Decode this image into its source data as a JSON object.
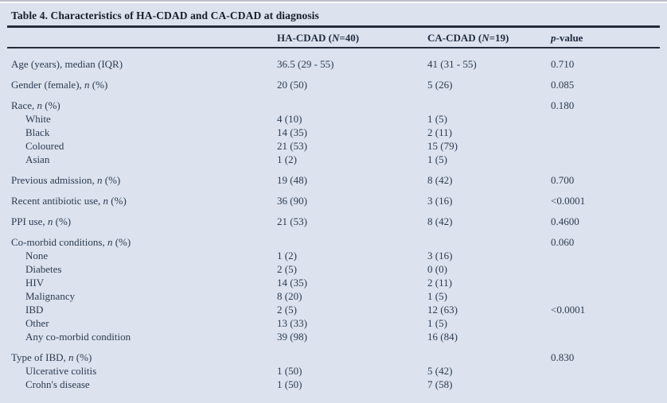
{
  "table": {
    "title": "Table 4. Characteristics of HA-CDAD and CA-CDAD at diagnosis",
    "columns": {
      "label": "",
      "ha": "HA-CDAD (N=40)",
      "ca": "CA-CDAD (N=19)",
      "p": "p-value"
    },
    "rows": [
      {
        "type": "main",
        "label": "Age (years), median (IQR)",
        "ha": "36.5 (29 - 55)",
        "ca": "41 (31 - 55)",
        "p": "0.710"
      },
      {
        "type": "main",
        "label": "Gender (female), n (%)",
        "ha": "20 (50)",
        "ca": "5 (26)",
        "p": "0.085"
      },
      {
        "type": "main",
        "label": "Race, n (%)",
        "ha": "",
        "ca": "",
        "p": "0.180"
      },
      {
        "type": "sub",
        "label": "White",
        "ha": "4 (10)",
        "ca": "1 (5)",
        "p": ""
      },
      {
        "type": "sub",
        "label": "Black",
        "ha": "14 (35)",
        "ca": "2 (11)",
        "p": ""
      },
      {
        "type": "sub",
        "label": "Coloured",
        "ha": "21 (53)",
        "ca": "15 (79)",
        "p": ""
      },
      {
        "type": "sub",
        "label": "Asian",
        "ha": "1 (2)",
        "ca": "1 (5)",
        "p": ""
      },
      {
        "type": "main",
        "label": "Previous admission, n (%)",
        "ha": "19 (48)",
        "ca": "8 (42)",
        "p": "0.700"
      },
      {
        "type": "main",
        "label": "Recent antibiotic use, n (%)",
        "ha": "36 (90)",
        "ca": "3 (16)",
        "p": "<0.0001"
      },
      {
        "type": "main",
        "label": "PPI use, n (%)",
        "ha": "21 (53)",
        "ca": "8 (42)",
        "p": "0.4600"
      },
      {
        "type": "main",
        "label": "Co-morbid conditions, n (%)",
        "ha": "",
        "ca": "",
        "p": "0.060"
      },
      {
        "type": "sub",
        "label": "None",
        "ha": "1 (2)",
        "ca": "3 (16)",
        "p": ""
      },
      {
        "type": "sub",
        "label": "Diabetes",
        "ha": "2 (5)",
        "ca": "0 (0)",
        "p": ""
      },
      {
        "type": "sub",
        "label": "HIV",
        "ha": "14 (35)",
        "ca": "2 (11)",
        "p": ""
      },
      {
        "type": "sub",
        "label": "Malignancy",
        "ha": "8 (20)",
        "ca": "1 (5)",
        "p": ""
      },
      {
        "type": "sub",
        "label": "IBD",
        "ha": "2 (5)",
        "ca": "12 (63)",
        "p": "<0.0001"
      },
      {
        "type": "sub",
        "label": "Other",
        "ha": "13 (33)",
        "ca": "1 (5)",
        "p": ""
      },
      {
        "type": "sub",
        "label": "Any co-morbid condition",
        "ha": "39 (98)",
        "ca": "16 (84)",
        "p": ""
      },
      {
        "type": "main",
        "label": "Type of IBD, n (%)",
        "ha": "",
        "ca": "",
        "p": "0.830"
      },
      {
        "type": "sub",
        "label": "Ulcerative colitis",
        "ha": "1 (50)",
        "ca": "5 (42)",
        "p": ""
      },
      {
        "type": "sub",
        "label": "Crohn's disease",
        "ha": "1 (50)",
        "ca": "7 (58)",
        "p": ""
      }
    ],
    "colors": {
      "panel_bg": "#dce3ee",
      "body_text": "#2c3a50",
      "title_text": "#161e29",
      "rule": "#242c3a"
    }
  }
}
